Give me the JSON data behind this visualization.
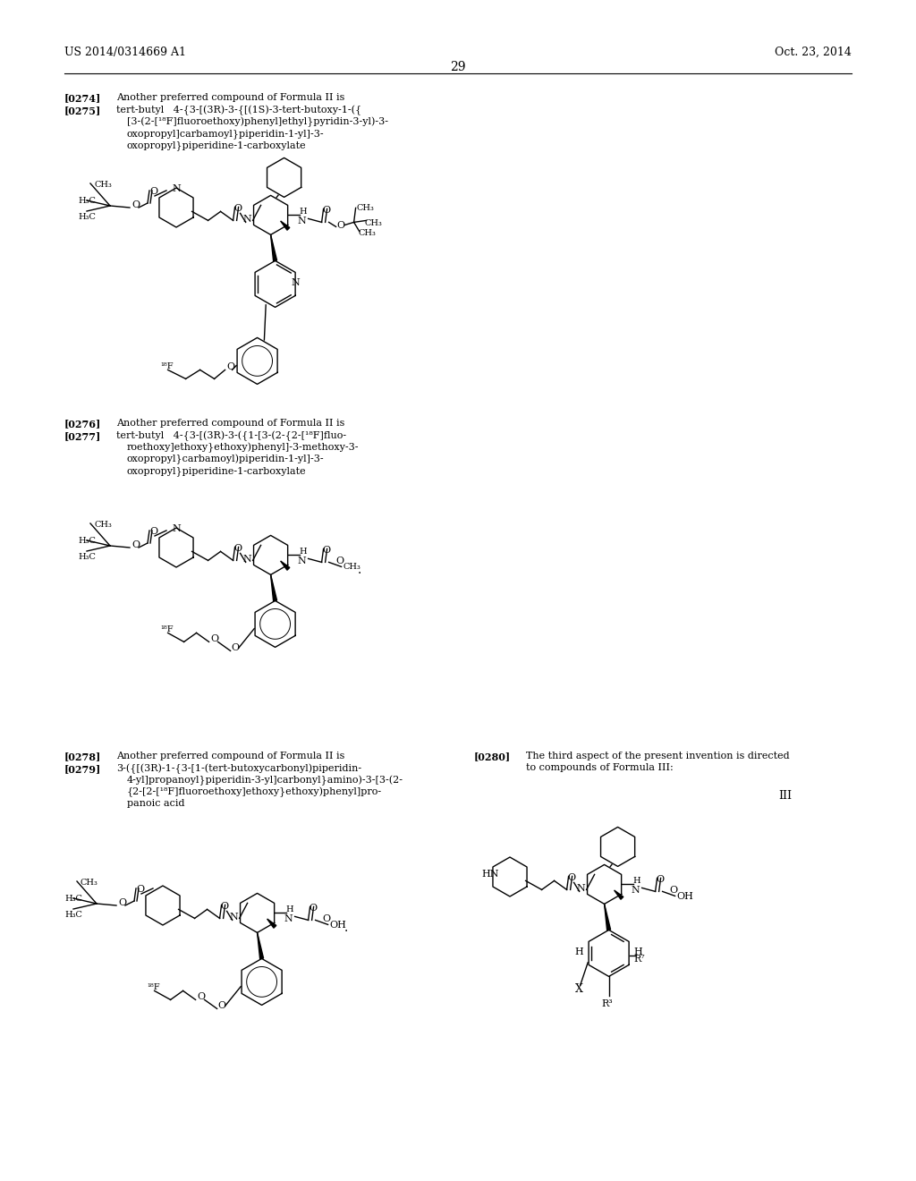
{
  "page_header_left": "US 2014/0314669 A1",
  "page_header_right": "Oct. 23, 2014",
  "page_number": "29",
  "background_color": "#ffffff",
  "text_color": "#000000"
}
